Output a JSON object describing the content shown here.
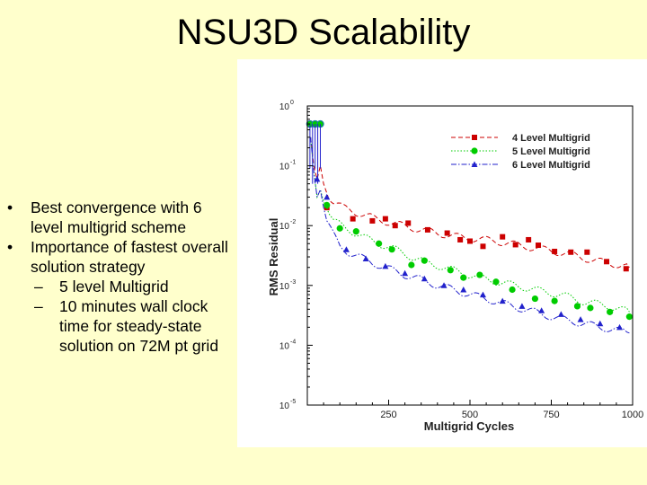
{
  "slide": {
    "title": "NSU3D Scalability",
    "bullets": [
      {
        "level": 1,
        "text": "Best convergence with 6 level multigrid scheme"
      },
      {
        "level": 1,
        "text": "Importance of fastest overall solution strategy"
      },
      {
        "level": 2,
        "text": "5 level Multigrid"
      },
      {
        "level": 2,
        "text": "10 minutes wall clock time for steady-state solution on 72M pt grid"
      }
    ]
  },
  "chart_data": {
    "type": "line",
    "title": "",
    "xlabel": "Multigrid Cycles",
    "ylabel": "RMS Residual",
    "xlim": [
      0,
      1000
    ],
    "ylim_log10": [
      -5,
      0
    ],
    "yscale": "log",
    "xticks": [
      250,
      500,
      750,
      1000
    ],
    "xtick_labels": [
      "250",
      "500",
      "750",
      "1000"
    ],
    "yticks_log10": [
      0,
      -1,
      -2,
      -3,
      -4,
      -5
    ],
    "ytick_mantissa": [
      "10",
      "10",
      "10",
      "10",
      "10",
      "10"
    ],
    "ytick_exponents": [
      "0",
      "-1",
      "-2",
      "-3",
      "-4",
      "-5"
    ],
    "grid": false,
    "legend_position": "top-right",
    "series": [
      {
        "name": "4 Level Multigrid",
        "color": "#cc0000",
        "line_style": "dashed",
        "marker": "square",
        "x": [
          10,
          20,
          30,
          40,
          50,
          60,
          80,
          110,
          160,
          210,
          260,
          310,
          350,
          400,
          460,
          520,
          580,
          640,
          700,
          760,
          820,
          880,
          940,
          990
        ],
        "y": [
          0.3,
          0.1,
          0.06,
          0.1,
          0.05,
          0.035,
          0.025,
          0.02,
          0.016,
          0.013,
          0.011,
          0.0095,
          0.0085,
          0.0075,
          0.0065,
          0.006,
          0.0055,
          0.0048,
          0.0042,
          0.0037,
          0.0032,
          0.0026,
          0.0023,
          0.002
        ],
        "marker_x": [
          60,
          140,
          200,
          240,
          270,
          310,
          370,
          430,
          470,
          500,
          540,
          600,
          640,
          680,
          710,
          760,
          810,
          860,
          920,
          980
        ],
        "marker_y": [
          0.02,
          0.013,
          0.012,
          0.013,
          0.01,
          0.011,
          0.0085,
          0.0075,
          0.0058,
          0.0055,
          0.0045,
          0.0065,
          0.0048,
          0.0058,
          0.0047,
          0.0037,
          0.0036,
          0.0036,
          0.0025,
          0.0019
        ]
      },
      {
        "name": "5 Level Multigrid",
        "color": "#00cc00",
        "line_style": "dotted",
        "marker": "circle",
        "x": [
          10,
          20,
          30,
          40,
          50,
          60,
          80,
          120,
          170,
          220,
          270,
          320,
          370,
          420,
          480,
          540,
          600,
          660,
          720,
          780,
          840,
          900,
          950,
          990
        ],
        "y": [
          0.3,
          0.08,
          0.03,
          0.04,
          0.025,
          0.02,
          0.012,
          0.009,
          0.0065,
          0.005,
          0.004,
          0.003,
          0.0024,
          0.002,
          0.0016,
          0.0013,
          0.0011,
          0.00095,
          0.0008,
          0.0007,
          0.00055,
          0.00048,
          0.00042,
          0.00036
        ],
        "marker_x": [
          8,
          24,
          40,
          60,
          100,
          150,
          220,
          260,
          320,
          360,
          440,
          480,
          530,
          580,
          630,
          700,
          760,
          830,
          870,
          930,
          990
        ],
        "marker_y": [
          0.5,
          0.5,
          0.5,
          0.022,
          0.009,
          0.008,
          0.005,
          0.004,
          0.0022,
          0.0026,
          0.0018,
          0.00135,
          0.0015,
          0.00115,
          0.00085,
          0.0006,
          0.00055,
          0.00045,
          0.00042,
          0.00036,
          0.0003
        ],
        "label_markers_on_spike": true
      },
      {
        "name": "6 Level Multigrid",
        "color": "#2222cc",
        "line_style": "dashdot",
        "marker": "triangle",
        "x": [
          10,
          20,
          30,
          40,
          50,
          60,
          80,
          100,
          130,
          160,
          200,
          250,
          300,
          350,
          400,
          450,
          500,
          550,
          600,
          650,
          700,
          750,
          800,
          850,
          900,
          950,
          990
        ],
        "y": [
          0.3,
          0.08,
          0.03,
          0.04,
          0.02,
          0.012,
          0.007,
          0.0045,
          0.0035,
          0.003,
          0.0024,
          0.0019,
          0.0015,
          0.00125,
          0.001,
          0.00085,
          0.0007,
          0.0006,
          0.0005,
          0.00042,
          0.00036,
          0.0003,
          0.00026,
          0.00023,
          0.0002,
          0.00018,
          0.00016
        ],
        "marker_x": [
          30,
          60,
          120,
          180,
          240,
          300,
          360,
          420,
          480,
          540,
          600,
          660,
          720,
          780,
          840,
          900,
          960
        ],
        "marker_y": [
          0.06,
          0.03,
          0.004,
          0.0028,
          0.0021,
          0.0016,
          0.0013,
          0.001,
          0.00085,
          0.0007,
          0.00055,
          0.00045,
          0.00038,
          0.00033,
          0.00027,
          0.00023,
          0.0002
        ]
      }
    ]
  }
}
